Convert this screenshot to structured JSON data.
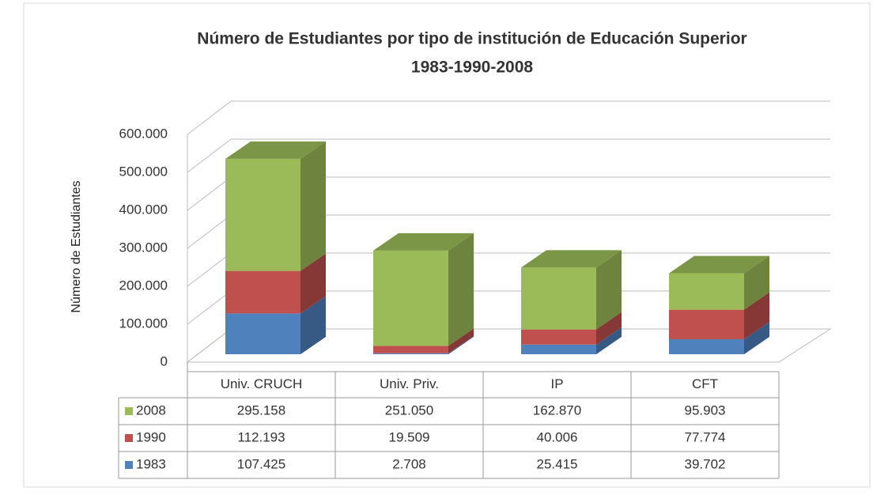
{
  "chart_data": {
    "type": "bar3d_stacked",
    "title": "Número de Estudiantes por tipo de institución de Educación Superior",
    "subtitle": "1983-1990-2008",
    "y_label": "Número de Estudiantes",
    "categories": [
      "Univ. CRUCH",
      "Univ. Priv.",
      "IP",
      "CFT"
    ],
    "series": [
      {
        "name": "2008",
        "color": "#9bbb59",
        "values": [
          295158,
          251050,
          162870,
          95903
        ],
        "value_labels": [
          "295.158",
          "251.050",
          "162.870",
          "95.903"
        ]
      },
      {
        "name": "1990",
        "color": "#c0504d",
        "values": [
          112193,
          19509,
          40006,
          77774
        ],
        "value_labels": [
          "112.193",
          "19.509",
          "40.006",
          "77.774"
        ]
      },
      {
        "name": "1983",
        "color": "#4f81bd",
        "values": [
          107425,
          2708,
          25415,
          39702
        ],
        "value_labels": [
          "107.425",
          "2.708",
          "25.415",
          "39.702"
        ]
      }
    ],
    "ylim": [
      0,
      600000
    ],
    "yticks": [
      0,
      {
        "value": 100000,
        "label": "100.000"
      },
      {
        "value": 200000,
        "label": "200.000"
      },
      {
        "value": 300000,
        "label": "300.000"
      },
      {
        "value": 400000,
        "label": "400.000"
      },
      {
        "value": 500000,
        "label": "500.000"
      },
      {
        "value": 600000,
        "label": "600.000"
      }
    ],
    "grid": true
  }
}
